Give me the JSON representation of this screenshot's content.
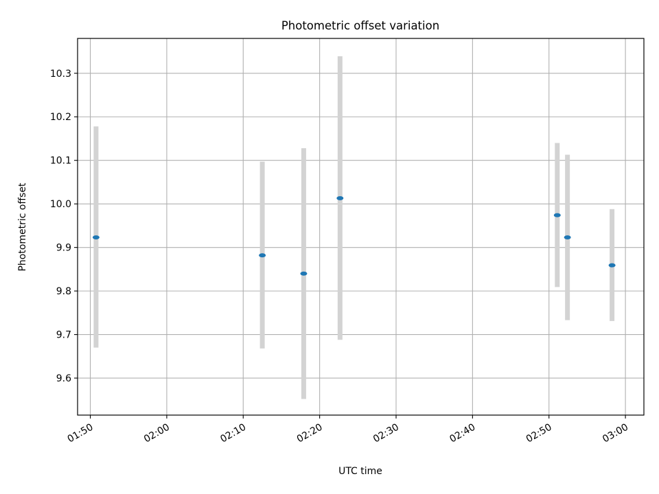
{
  "chart_data": {
    "type": "scatter",
    "title": "Photometric offset variation",
    "xlabel": "UTC time",
    "ylabel": "Photometric offset",
    "x_ticks": [
      "01:50",
      "02:00",
      "02:10",
      "02:20",
      "02:30",
      "02:40",
      "02:50",
      "03:00"
    ],
    "y_ticks": [
      "9.6",
      "9.7",
      "9.8",
      "9.9",
      "10.0",
      "10.1",
      "10.2",
      "10.3"
    ],
    "xlim": [
      "01:48:20",
      "03:02:25"
    ],
    "ylim": [
      9.515,
      10.38
    ],
    "grid": true,
    "points": [
      {
        "time": "01:50:45",
        "value": 9.923,
        "err_low": 9.67,
        "err_high": 10.178
      },
      {
        "time": "02:12:30",
        "value": 9.882,
        "err_low": 9.668,
        "err_high": 10.097
      },
      {
        "time": "02:17:55",
        "value": 9.84,
        "err_low": 9.552,
        "err_high": 10.128
      },
      {
        "time": "02:22:40",
        "value": 10.013,
        "err_low": 9.688,
        "err_high": 10.339
      },
      {
        "time": "02:51:05",
        "value": 9.974,
        "err_low": 9.809,
        "err_high": 10.14
      },
      {
        "time": "02:52:25",
        "value": 9.923,
        "err_low": 9.733,
        "err_high": 10.113
      },
      {
        "time": "02:58:15",
        "value": 9.859,
        "err_low": 9.731,
        "err_high": 9.988
      }
    ],
    "colors": {
      "point": "#1f77b4",
      "errorbar": "#d3d3d3",
      "grid": "#b0b0b0",
      "axes": "#000000"
    }
  }
}
